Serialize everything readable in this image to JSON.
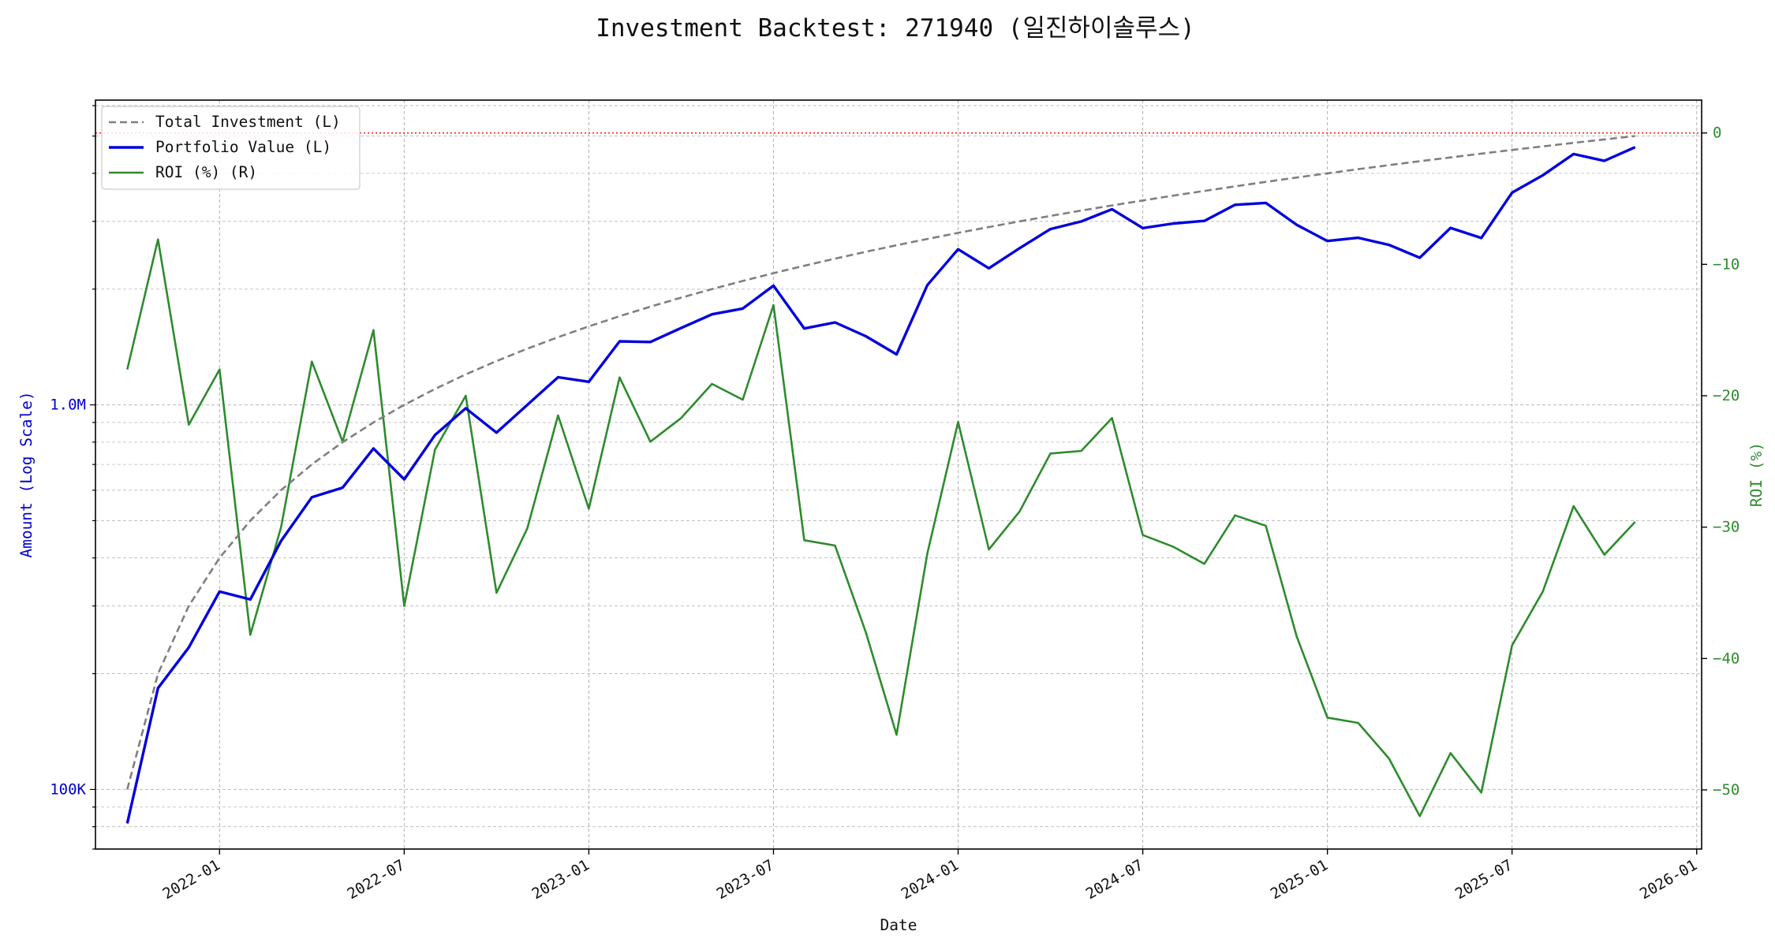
{
  "chart_data": {
    "type": "line",
    "title": "Investment Backtest: 271940 (일진하이솔루스)",
    "xlabel": "Date",
    "ylabel_left": "Amount (Log Scale)",
    "ylabel_right": "ROI (%)",
    "x_ticks": [
      "2022-01",
      "2022-07",
      "2023-01",
      "2023-07",
      "2024-01",
      "2024-07",
      "2025-01",
      "2025-07",
      "2026-01"
    ],
    "y_left_scale": "log",
    "y_left_ticks": [
      "100K",
      "1.0M"
    ],
    "y_left_lim": [
      70000,
      6200000
    ],
    "y_right_ticks": [
      "0",
      "−10",
      "−20",
      "−30",
      "−40",
      "−50"
    ],
    "y_right_lim": [
      -54.5,
      2.5
    ],
    "grid": true,
    "legend_position": "upper-left",
    "reference_line": {
      "axis": "right",
      "value": 0,
      "color": "#ff0000",
      "style": "dotted"
    },
    "x": [
      "2021-10",
      "2021-11",
      "2021-12",
      "2022-01",
      "2022-02",
      "2022-03",
      "2022-04",
      "2022-05",
      "2022-06",
      "2022-07",
      "2022-08",
      "2022-09",
      "2022-10",
      "2022-11",
      "2022-12",
      "2023-01",
      "2023-02",
      "2023-03",
      "2023-04",
      "2023-05",
      "2023-06",
      "2023-07",
      "2023-08",
      "2023-09",
      "2023-10",
      "2023-11",
      "2023-12",
      "2024-01",
      "2024-02",
      "2024-03",
      "2024-04",
      "2024-05",
      "2024-06",
      "2024-07",
      "2024-08",
      "2024-09",
      "2024-10",
      "2024-11",
      "2024-12",
      "2025-01",
      "2025-02",
      "2025-03",
      "2025-04",
      "2025-05",
      "2025-06",
      "2025-07",
      "2025-08",
      "2025-09",
      "2025-10",
      "2025-11"
    ],
    "series": [
      {
        "name": "Total Investment (L)",
        "axis": "left",
        "color": "#7f7f7f",
        "style": "dashed",
        "values": [
          100000,
          200000,
          300000,
          400000,
          500000,
          600000,
          700000,
          800000,
          900000,
          1000000,
          1100000,
          1200000,
          1300000,
          1400000,
          1500000,
          1600000,
          1700000,
          1800000,
          1900000,
          2000000,
          2100000,
          2200000,
          2300000,
          2400000,
          2500000,
          2600000,
          2700000,
          2800000,
          2900000,
          3000000,
          3100000,
          3200000,
          3300000,
          3400000,
          3500000,
          3600000,
          3700000,
          3800000,
          3900000,
          4000000,
          4100000,
          4200000,
          4300000,
          4400000,
          4500000,
          4600000,
          4700000,
          4800000,
          4900000,
          5000000
        ]
      },
      {
        "name": "Portfolio Value (L)",
        "axis": "left",
        "color": "#0000dd",
        "style": "solid",
        "values": [
          81600,
          183500,
          234000,
          327000,
          312000,
          443000,
          575000,
          609000,
          770000,
          640000,
          835000,
          980000,
          847000,
          1000000,
          1180000,
          1148000,
          1463000,
          1457000,
          1584000,
          1720000,
          1780000,
          2041000,
          1580000,
          1638000,
          1508000,
          1353000,
          2048000,
          2538000,
          2266000,
          2555000,
          2864000,
          2999000,
          3226000,
          2882000,
          2962000,
          3008000,
          3313000,
          3351000,
          2940000,
          2668000,
          2719000,
          2606000,
          2413000,
          2885000,
          2716000,
          3563000,
          3955000,
          4489000,
          4311000,
          4678000
        ]
      },
      {
        "name": "ROI (%) (R)",
        "axis": "right",
        "color": "#2e8b2e",
        "style": "solid",
        "values": [
          -18.0,
          -8.1,
          -22.2,
          -18.0,
          -38.2,
          -30.0,
          -17.4,
          -23.5,
          -15.0,
          -36.0,
          -24.1,
          -20.0,
          -35.0,
          -30.1,
          -21.5,
          -28.6,
          -18.6,
          -23.5,
          -21.7,
          -19.1,
          -20.3,
          -13.1,
          -31.0,
          -31.4,
          -38.0,
          -45.8,
          -32.0,
          -22.0,
          -31.7,
          -28.8,
          -24.4,
          -24.2,
          -21.7,
          -30.6,
          -31.5,
          -32.8,
          -29.1,
          -29.9,
          -38.3,
          -44.5,
          -44.9,
          -47.6,
          -52.0,
          -47.2,
          -50.2,
          -39.0,
          -34.9,
          -28.4,
          -32.1,
          -29.6
        ]
      }
    ]
  }
}
